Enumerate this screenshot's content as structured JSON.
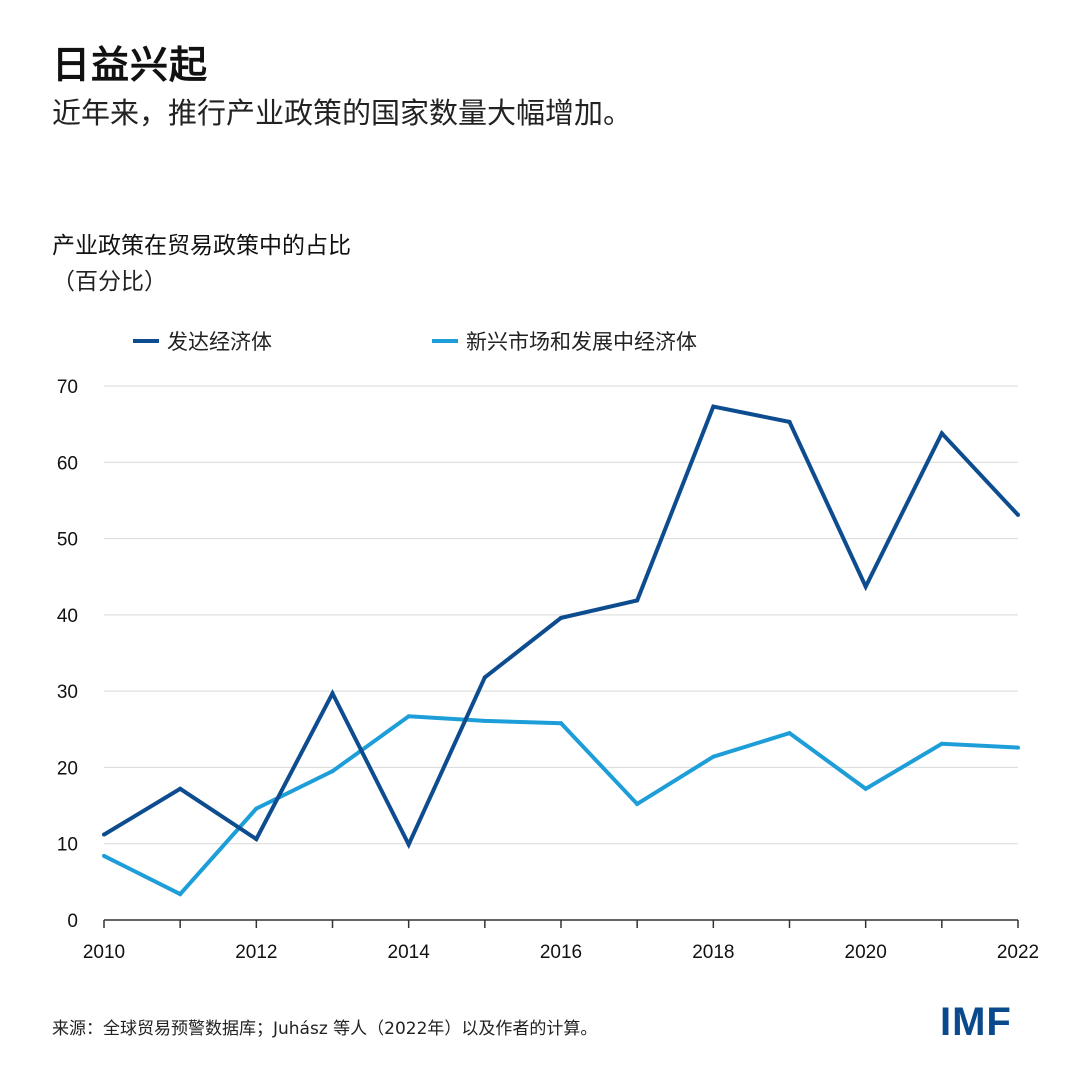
{
  "header": {
    "title": "日益兴起",
    "subtitle": "近年来，推行产业政策的国家数量大幅增加。"
  },
  "chart_data": {
    "type": "line",
    "title": "产业政策在贸易政策中的占比",
    "ylabel": "（百分比）",
    "xlabel": "",
    "x": [
      2010,
      2011,
      2012,
      2013,
      2014,
      2015,
      2016,
      2017,
      2018,
      2019,
      2020,
      2021,
      2022
    ],
    "x_ticks": [
      "2010",
      "2012",
      "2014",
      "2016",
      "2018",
      "2020",
      "2022"
    ],
    "y_ticks": [
      "0",
      "10",
      "20",
      "30",
      "40",
      "50",
      "60",
      "70"
    ],
    "ylim": [
      0,
      70
    ],
    "xlim": [
      2010,
      2022
    ],
    "grid": true,
    "legend_position": "top",
    "series": [
      {
        "name": "发达经济体",
        "color": "#0d4c8e",
        "values": [
          11.2,
          17.2,
          10.6,
          29.7,
          9.9,
          31.8,
          39.6,
          41.9,
          67.3,
          65.3,
          43.7,
          63.8,
          53.1
        ]
      },
      {
        "name": "新兴市场和发展中经济体",
        "color": "#1e9ed8",
        "values": [
          8.4,
          3.4,
          14.6,
          19.5,
          26.7,
          26.1,
          25.8,
          15.2,
          21.4,
          24.5,
          17.2,
          23.1,
          22.6
        ]
      }
    ]
  },
  "footer": {
    "source": "来源：全球贸易预警数据库；Juhász 等人（2022年）以及作者的计算。",
    "logo": "IMF",
    "logo_color": "#0a4a8c"
  }
}
